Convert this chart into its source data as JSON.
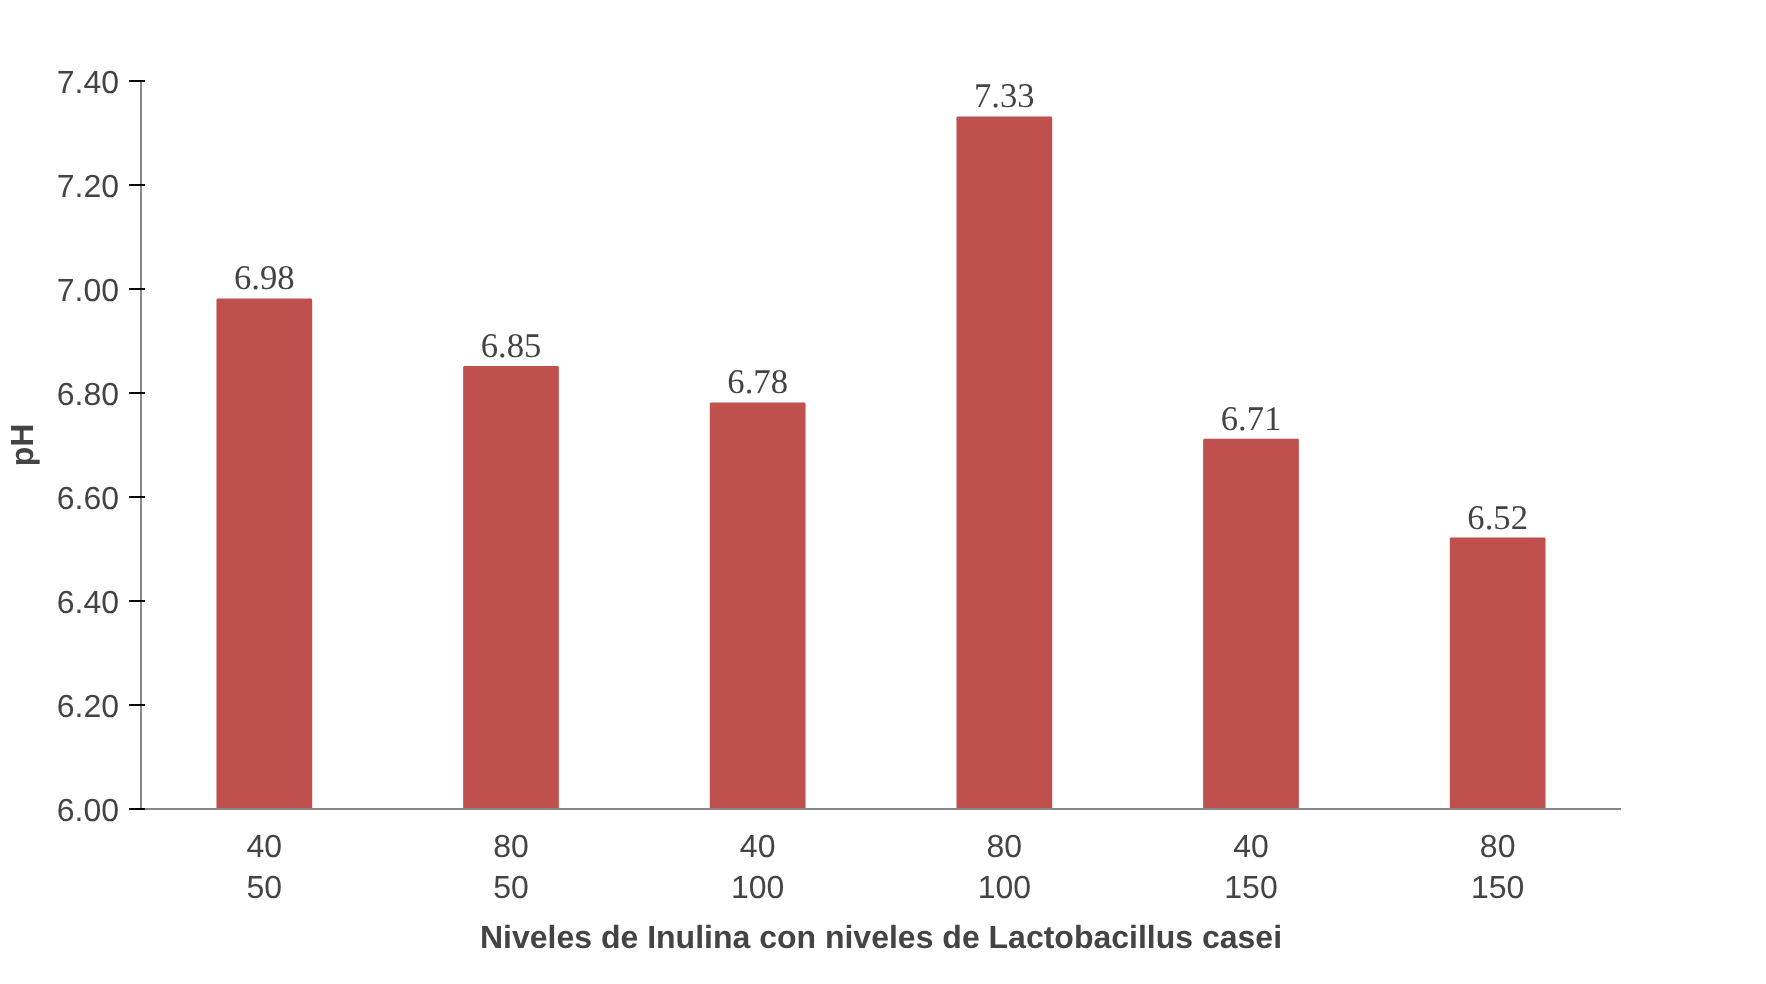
{
  "chart_data": {
    "type": "bar",
    "xlabel": "Niveles de Inulina con niveles de Lactobacillus casei",
    "ylabel": "pH",
    "categories": [
      "40\n50",
      "80\n50",
      "40\n100",
      "80\n100",
      "40\n150",
      "80\n150"
    ],
    "values": [
      6.98,
      6.85,
      6.78,
      7.33,
      6.71,
      6.52
    ],
    "color": "#c0504d",
    "data_labels": true,
    "grid": false,
    "ylim": [
      6.0,
      7.4
    ],
    "yticks": [
      {
        "value": 6.0,
        "label": "6.00"
      },
      {
        "value": 6.2,
        "label": "6.20"
      },
      {
        "value": 6.4,
        "label": "6.40"
      },
      {
        "value": 6.6,
        "label": "6.60"
      },
      {
        "value": 6.8,
        "label": "6.80"
      },
      {
        "value": 7.0,
        "label": "7.00"
      },
      {
        "value": 7.2,
        "label": "7.20"
      },
      {
        "value": 7.4,
        "label": "7.40"
      }
    ]
  }
}
